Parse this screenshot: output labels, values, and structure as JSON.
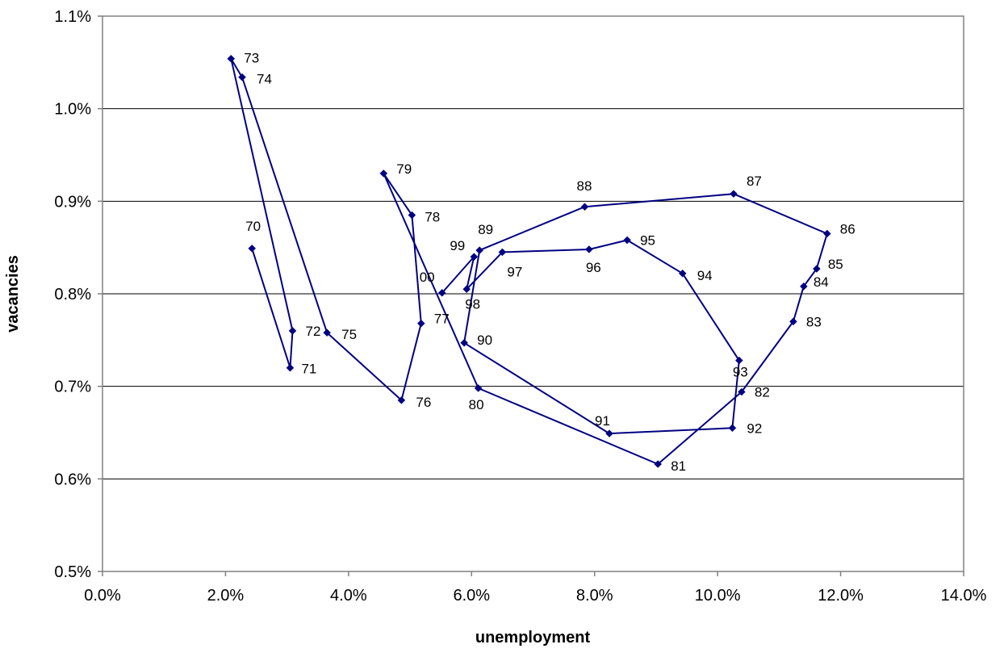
{
  "chart_data": {
    "type": "scatter",
    "xlabel": "unemployment",
    "ylabel": "vacancies",
    "xlim": [
      0.0,
      14.0
    ],
    "ylim": [
      0.5,
      1.1
    ],
    "x_ticks": [
      "0.0%",
      "2.0%",
      "4.0%",
      "6.0%",
      "8.0%",
      "10.0%",
      "12.0%",
      "14.0%"
    ],
    "y_ticks": [
      "0.5%",
      "0.6%",
      "0.7%",
      "0.8%",
      "0.9%",
      "1.0%",
      "1.1%"
    ],
    "grid": "horizontal",
    "connected": true,
    "line_color": "#000080",
    "marker": "diamond",
    "series": [
      {
        "points": [
          {
            "label": "70",
            "x": 2.43,
            "y": 0.849
          },
          {
            "label": "71",
            "x": 3.05,
            "y": 0.72
          },
          {
            "label": "72",
            "x": 3.09,
            "y": 0.76
          },
          {
            "label": "73",
            "x": 2.09,
            "y": 1.054
          },
          {
            "label": "74",
            "x": 2.27,
            "y": 1.034
          },
          {
            "label": "75",
            "x": 3.65,
            "y": 0.758
          },
          {
            "label": "76",
            "x": 4.86,
            "y": 0.685
          },
          {
            "label": "77",
            "x": 5.18,
            "y": 0.768
          },
          {
            "label": "78",
            "x": 5.03,
            "y": 0.885
          },
          {
            "label": "79",
            "x": 4.57,
            "y": 0.93
          },
          {
            "label": "80",
            "x": 6.11,
            "y": 0.698
          },
          {
            "label": "81",
            "x": 9.03,
            "y": 0.616
          },
          {
            "label": "82",
            "x": 10.39,
            "y": 0.694
          },
          {
            "label": "83",
            "x": 11.23,
            "y": 0.77
          },
          {
            "label": "84",
            "x": 11.4,
            "y": 0.808
          },
          {
            "label": "85",
            "x": 11.61,
            "y": 0.827
          },
          {
            "label": "86",
            "x": 11.78,
            "y": 0.865
          },
          {
            "label": "87",
            "x": 10.26,
            "y": 0.908
          },
          {
            "label": "88",
            "x": 7.84,
            "y": 0.894
          },
          {
            "label": "89",
            "x": 6.13,
            "y": 0.847
          },
          {
            "label": "90",
            "x": 5.88,
            "y": 0.747
          },
          {
            "label": "91",
            "x": 8.24,
            "y": 0.649
          },
          {
            "label": "92",
            "x": 10.24,
            "y": 0.655
          },
          {
            "label": "93",
            "x": 10.35,
            "y": 0.728
          },
          {
            "label": "94",
            "x": 9.43,
            "y": 0.822
          },
          {
            "label": "95",
            "x": 8.53,
            "y": 0.858
          },
          {
            "label": "96",
            "x": 7.91,
            "y": 0.848
          },
          {
            "label": "97",
            "x": 6.5,
            "y": 0.845
          },
          {
            "label": "98",
            "x": 5.92,
            "y": 0.805
          },
          {
            "label": "99",
            "x": 6.04,
            "y": 0.84
          },
          {
            "label": "00",
            "x": 5.52,
            "y": 0.801
          }
        ]
      }
    ]
  }
}
